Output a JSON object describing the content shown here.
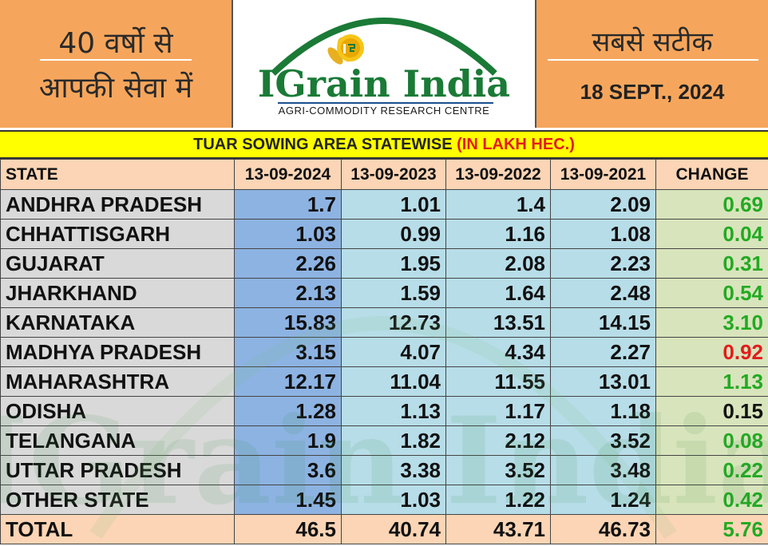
{
  "header": {
    "left_line1": "40 वर्षो से",
    "left_line2": "आपकी सेवा में",
    "brand": "IGrain India",
    "tagline": "AGRI-COMMODITY RESEARCH CENTRE",
    "right_line1": "सबसे सटीक",
    "date": "18 SEPT., 2024"
  },
  "title": {
    "main": "TUAR SOWING AREA STATEWISE ",
    "unit": "(IN LAKH HEC.)"
  },
  "table": {
    "columns": [
      "STATE",
      "13-09-2024",
      "13-09-2023",
      "13-09-2022",
      "13-09-2021",
      "CHANGE"
    ],
    "rows": [
      {
        "state": "ANDHRA PRADESH",
        "v2024": "1.7",
        "v2023": "1.01",
        "v2022": "1.4",
        "v2021": "2.09",
        "change": "0.69",
        "change_color": "#22aa22"
      },
      {
        "state": "CHHATTISGARH",
        "v2024": "1.03",
        "v2023": "0.99",
        "v2022": "1.16",
        "v2021": "1.08",
        "change": "0.04",
        "change_color": "#22aa22"
      },
      {
        "state": "GUJARAT",
        "v2024": "2.26",
        "v2023": "1.95",
        "v2022": "2.08",
        "v2021": "2.23",
        "change": "0.31",
        "change_color": "#22aa22"
      },
      {
        "state": "JHARKHAND",
        "v2024": "2.13",
        "v2023": "1.59",
        "v2022": "1.64",
        "v2021": "2.48",
        "change": "0.54",
        "change_color": "#22aa22"
      },
      {
        "state": "KARNATAKA",
        "v2024": "15.83",
        "v2023": "12.73",
        "v2022": "13.51",
        "v2021": "14.15",
        "change": "3.10",
        "change_color": "#22aa22"
      },
      {
        "state": "MADHYA PRADESH",
        "v2024": "3.15",
        "v2023": "4.07",
        "v2022": "4.34",
        "v2021": "2.27",
        "change": "0.92",
        "change_color": "#e31b1b"
      },
      {
        "state": "MAHARASHTRA",
        "v2024": "12.17",
        "v2023": "11.04",
        "v2022": "11.55",
        "v2021": "13.01",
        "change": "1.13",
        "change_color": "#22aa22"
      },
      {
        "state": "ODISHA",
        "v2024": "1.28",
        "v2023": "1.13",
        "v2022": "1.17",
        "v2021": "1.18",
        "change": "0.15",
        "change_color": "#111111"
      },
      {
        "state": "TELANGANA",
        "v2024": "1.9",
        "v2023": "1.82",
        "v2022": "2.12",
        "v2021": "3.52",
        "change": "0.08",
        "change_color": "#22aa22"
      },
      {
        "state": "UTTAR PRADESH",
        "v2024": "3.6",
        "v2023": "3.38",
        "v2022": "3.52",
        "v2021": "3.48",
        "change": "0.22",
        "change_color": "#22aa22"
      },
      {
        "state": "OTHER STATE",
        "v2024": "1.45",
        "v2023": "1.03",
        "v2022": "1.22",
        "v2021": "1.24",
        "change": "0.42",
        "change_color": "#22aa22"
      }
    ],
    "total": {
      "state": "TOTAL",
      "v2024": "46.5",
      "v2023": "40.74",
      "v2022": "43.71",
      "v2021": "46.73",
      "change": "5.76",
      "change_color": "#22aa22"
    }
  },
  "colors": {
    "header_orange": "#f6a65c",
    "title_yellow": "#ffff00",
    "brand_green": "#1a7a36",
    "positive": "#22aa22",
    "negative": "#e31b1b"
  }
}
